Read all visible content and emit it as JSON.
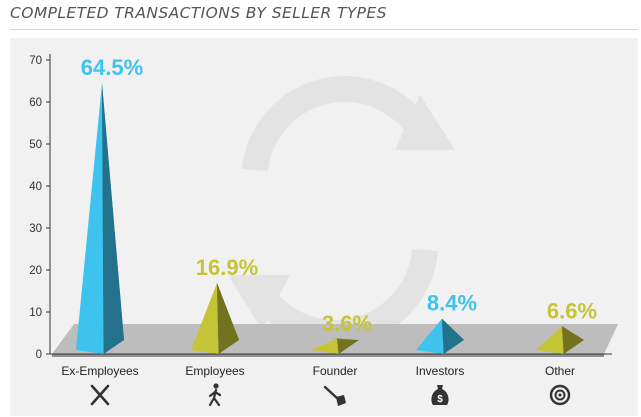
{
  "title": "COMPLETED TRANSACTIONS BY SELLER TYPES",
  "colors": {
    "panel": "#f1f1f1",
    "floor": "#bdbdbd",
    "floor_edge": "#8f8f8f",
    "blue": "#3dc3ee",
    "green": "#c4c436",
    "watermark": "#e3e3e3",
    "axis": "#333333"
  },
  "chart_data": {
    "type": "bar",
    "title": "COMPLETED TRANSACTIONS BY SELLER TYPES",
    "xlabel": "",
    "ylabel": "",
    "ylim": [
      0,
      70
    ],
    "yticks": [
      0,
      10,
      20,
      30,
      40,
      50,
      60,
      70
    ],
    "categories": [
      "Ex-Employees",
      "Employees",
      "Founder",
      "Investors",
      "Other"
    ],
    "values": [
      64.5,
      16.9,
      3.6,
      8.4,
      6.6
    ],
    "data_labels": [
      "64.5%",
      "16.9%",
      "3.6%",
      "8.4%",
      "6.6%"
    ],
    "bar_colors": [
      "#3dc3ee",
      "#c4c436",
      "#c4c436",
      "#3dc3ee",
      "#c4c436"
    ],
    "category_icons": [
      "x-cross-icon",
      "walking-person-icon",
      "shovel-icon",
      "money-bag-icon",
      "target-icon"
    ],
    "grid": false,
    "legend": "none"
  }
}
